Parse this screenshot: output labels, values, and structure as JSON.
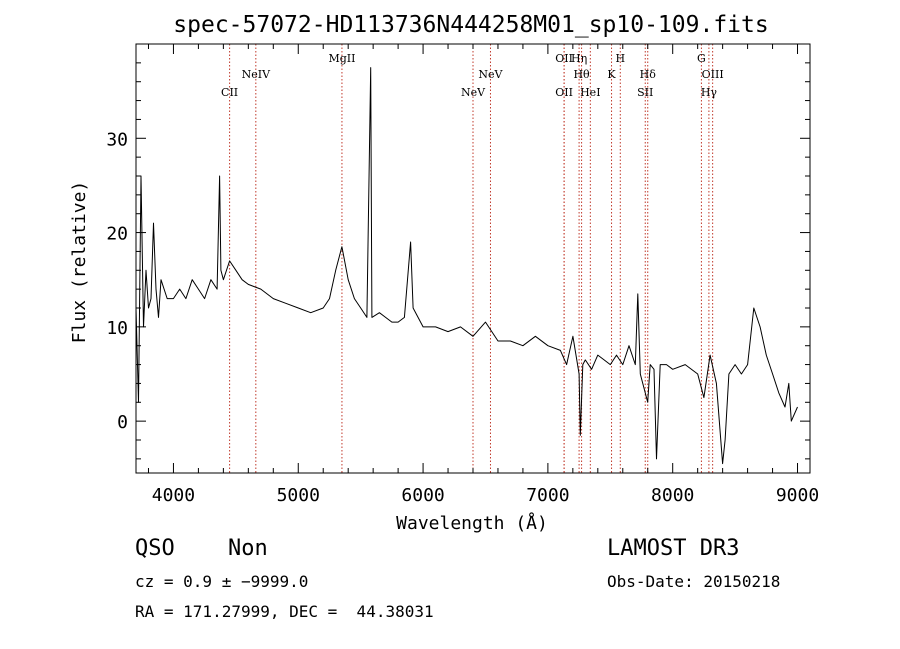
{
  "chart_data": {
    "type": "line",
    "title": "spec-57072-HD113736N444258M01_sp10-109.fits",
    "xlabel": "Wavelength (Å)",
    "ylabel": "Flux (relative)",
    "xlim": [
      3700,
      9100
    ],
    "ylim": [
      -5.5,
      40
    ],
    "x_ticks": [
      4000,
      5000,
      6000,
      7000,
      8000,
      9000
    ],
    "y_ticks": [
      0,
      10,
      20,
      30
    ],
    "grid": false,
    "line_color": "#000000",
    "marker_color": "#c0392b",
    "lines": [
      {
        "label": "CII",
        "x": 4450,
        "row": 3
      },
      {
        "label": "NeIV",
        "x": 4660,
        "row": 2
      },
      {
        "label": "MgII",
        "x": 5350,
        "row": 1
      },
      {
        "label": "NeV",
        "x": 6400,
        "row": 3
      },
      {
        "label": "NeV",
        "x": 6540,
        "row": 2
      },
      {
        "label": "OII",
        "x": 7130,
        "row": 1
      },
      {
        "label": "OII",
        "x": 7130,
        "row": 3
      },
      {
        "label": "Hη",
        "x": 7250,
        "row": 1
      },
      {
        "label": "Hθ",
        "x": 7270,
        "row": 2
      },
      {
        "label": "HeI",
        "x": 7340,
        "row": 3
      },
      {
        "label": "K",
        "x": 7510,
        "row": 2
      },
      {
        "label": "H",
        "x": 7580,
        "row": 1
      },
      {
        "label": "Hδ",
        "x": 7800,
        "row": 2
      },
      {
        "label": "SII",
        "x": 7780,
        "row": 3
      },
      {
        "label": "G",
        "x": 8230,
        "row": 1
      },
      {
        "label": "OIII",
        "x": 8320,
        "row": 2
      },
      {
        "label": "Hγ",
        "x": 8290,
        "row": 3
      }
    ],
    "spectrum": [
      [
        3700,
        12
      ],
      [
        3720,
        2
      ],
      [
        3740,
        26
      ],
      [
        3760,
        10
      ],
      [
        3780,
        16
      ],
      [
        3800,
        12
      ],
      [
        3820,
        13
      ],
      [
        3840,
        21
      ],
      [
        3860,
        14
      ],
      [
        3880,
        11
      ],
      [
        3900,
        15
      ],
      [
        3950,
        13
      ],
      [
        4000,
        13
      ],
      [
        4050,
        14
      ],
      [
        4100,
        13
      ],
      [
        4150,
        15
      ],
      [
        4200,
        14
      ],
      [
        4250,
        13
      ],
      [
        4300,
        15
      ],
      [
        4350,
        14
      ],
      [
        4370,
        26
      ],
      [
        4380,
        16
      ],
      [
        4400,
        15
      ],
      [
        4450,
        17
      ],
      [
        4500,
        16
      ],
      [
        4550,
        15
      ],
      [
        4600,
        14.5
      ],
      [
        4700,
        14
      ],
      [
        4800,
        13
      ],
      [
        4900,
        12.5
      ],
      [
        5000,
        12
      ],
      [
        5100,
        11.5
      ],
      [
        5200,
        12
      ],
      [
        5250,
        13
      ],
      [
        5300,
        16
      ],
      [
        5350,
        18.5
      ],
      [
        5400,
        15
      ],
      [
        5450,
        13
      ],
      [
        5500,
        12
      ],
      [
        5550,
        11
      ],
      [
        5580,
        37.5
      ],
      [
        5590,
        11
      ],
      [
        5650,
        11.5
      ],
      [
        5700,
        11
      ],
      [
        5750,
        10.5
      ],
      [
        5800,
        10.5
      ],
      [
        5850,
        11
      ],
      [
        5900,
        19
      ],
      [
        5920,
        12
      ],
      [
        6000,
        10
      ],
      [
        6100,
        10
      ],
      [
        6200,
        9.5
      ],
      [
        6300,
        10
      ],
      [
        6400,
        9
      ],
      [
        6500,
        10.5
      ],
      [
        6600,
        8.5
      ],
      [
        6700,
        8.5
      ],
      [
        6800,
        8
      ],
      [
        6900,
        9
      ],
      [
        7000,
        8
      ],
      [
        7100,
        7.5
      ],
      [
        7150,
        6
      ],
      [
        7200,
        9
      ],
      [
        7250,
        5
      ],
      [
        7260,
        -1.5
      ],
      [
        7280,
        6
      ],
      [
        7300,
        6.5
      ],
      [
        7350,
        5.5
      ],
      [
        7400,
        7
      ],
      [
        7450,
        6.5
      ],
      [
        7500,
        6
      ],
      [
        7550,
        7
      ],
      [
        7600,
        6
      ],
      [
        7650,
        8
      ],
      [
        7700,
        6
      ],
      [
        7720,
        13.5
      ],
      [
        7740,
        5
      ],
      [
        7800,
        2
      ],
      [
        7820,
        6
      ],
      [
        7850,
        5.5
      ],
      [
        7870,
        -4
      ],
      [
        7900,
        6
      ],
      [
        7950,
        6
      ],
      [
        8000,
        5.5
      ],
      [
        8100,
        6
      ],
      [
        8200,
        5
      ],
      [
        8250,
        2.5
      ],
      [
        8300,
        7
      ],
      [
        8350,
        4
      ],
      [
        8400,
        -4.5
      ],
      [
        8420,
        -2
      ],
      [
        8450,
        5
      ],
      [
        8500,
        6
      ],
      [
        8550,
        5
      ],
      [
        8600,
        6
      ],
      [
        8650,
        12
      ],
      [
        8700,
        10
      ],
      [
        8750,
        7
      ],
      [
        8800,
        5
      ],
      [
        8850,
        3
      ],
      [
        8900,
        1.5
      ],
      [
        8930,
        4
      ],
      [
        8950,
        0
      ],
      [
        9000,
        1.5
      ]
    ]
  },
  "info": {
    "class_label": "QSO",
    "subclass_label": "Non",
    "cz_label": "cz = 0.9 ± −9999.0",
    "coords_label": "RA = 171.27999, DEC =  44.38031",
    "survey_label": "LAMOST DR3",
    "obs_date_label": "Obs-Date: 20150218"
  }
}
